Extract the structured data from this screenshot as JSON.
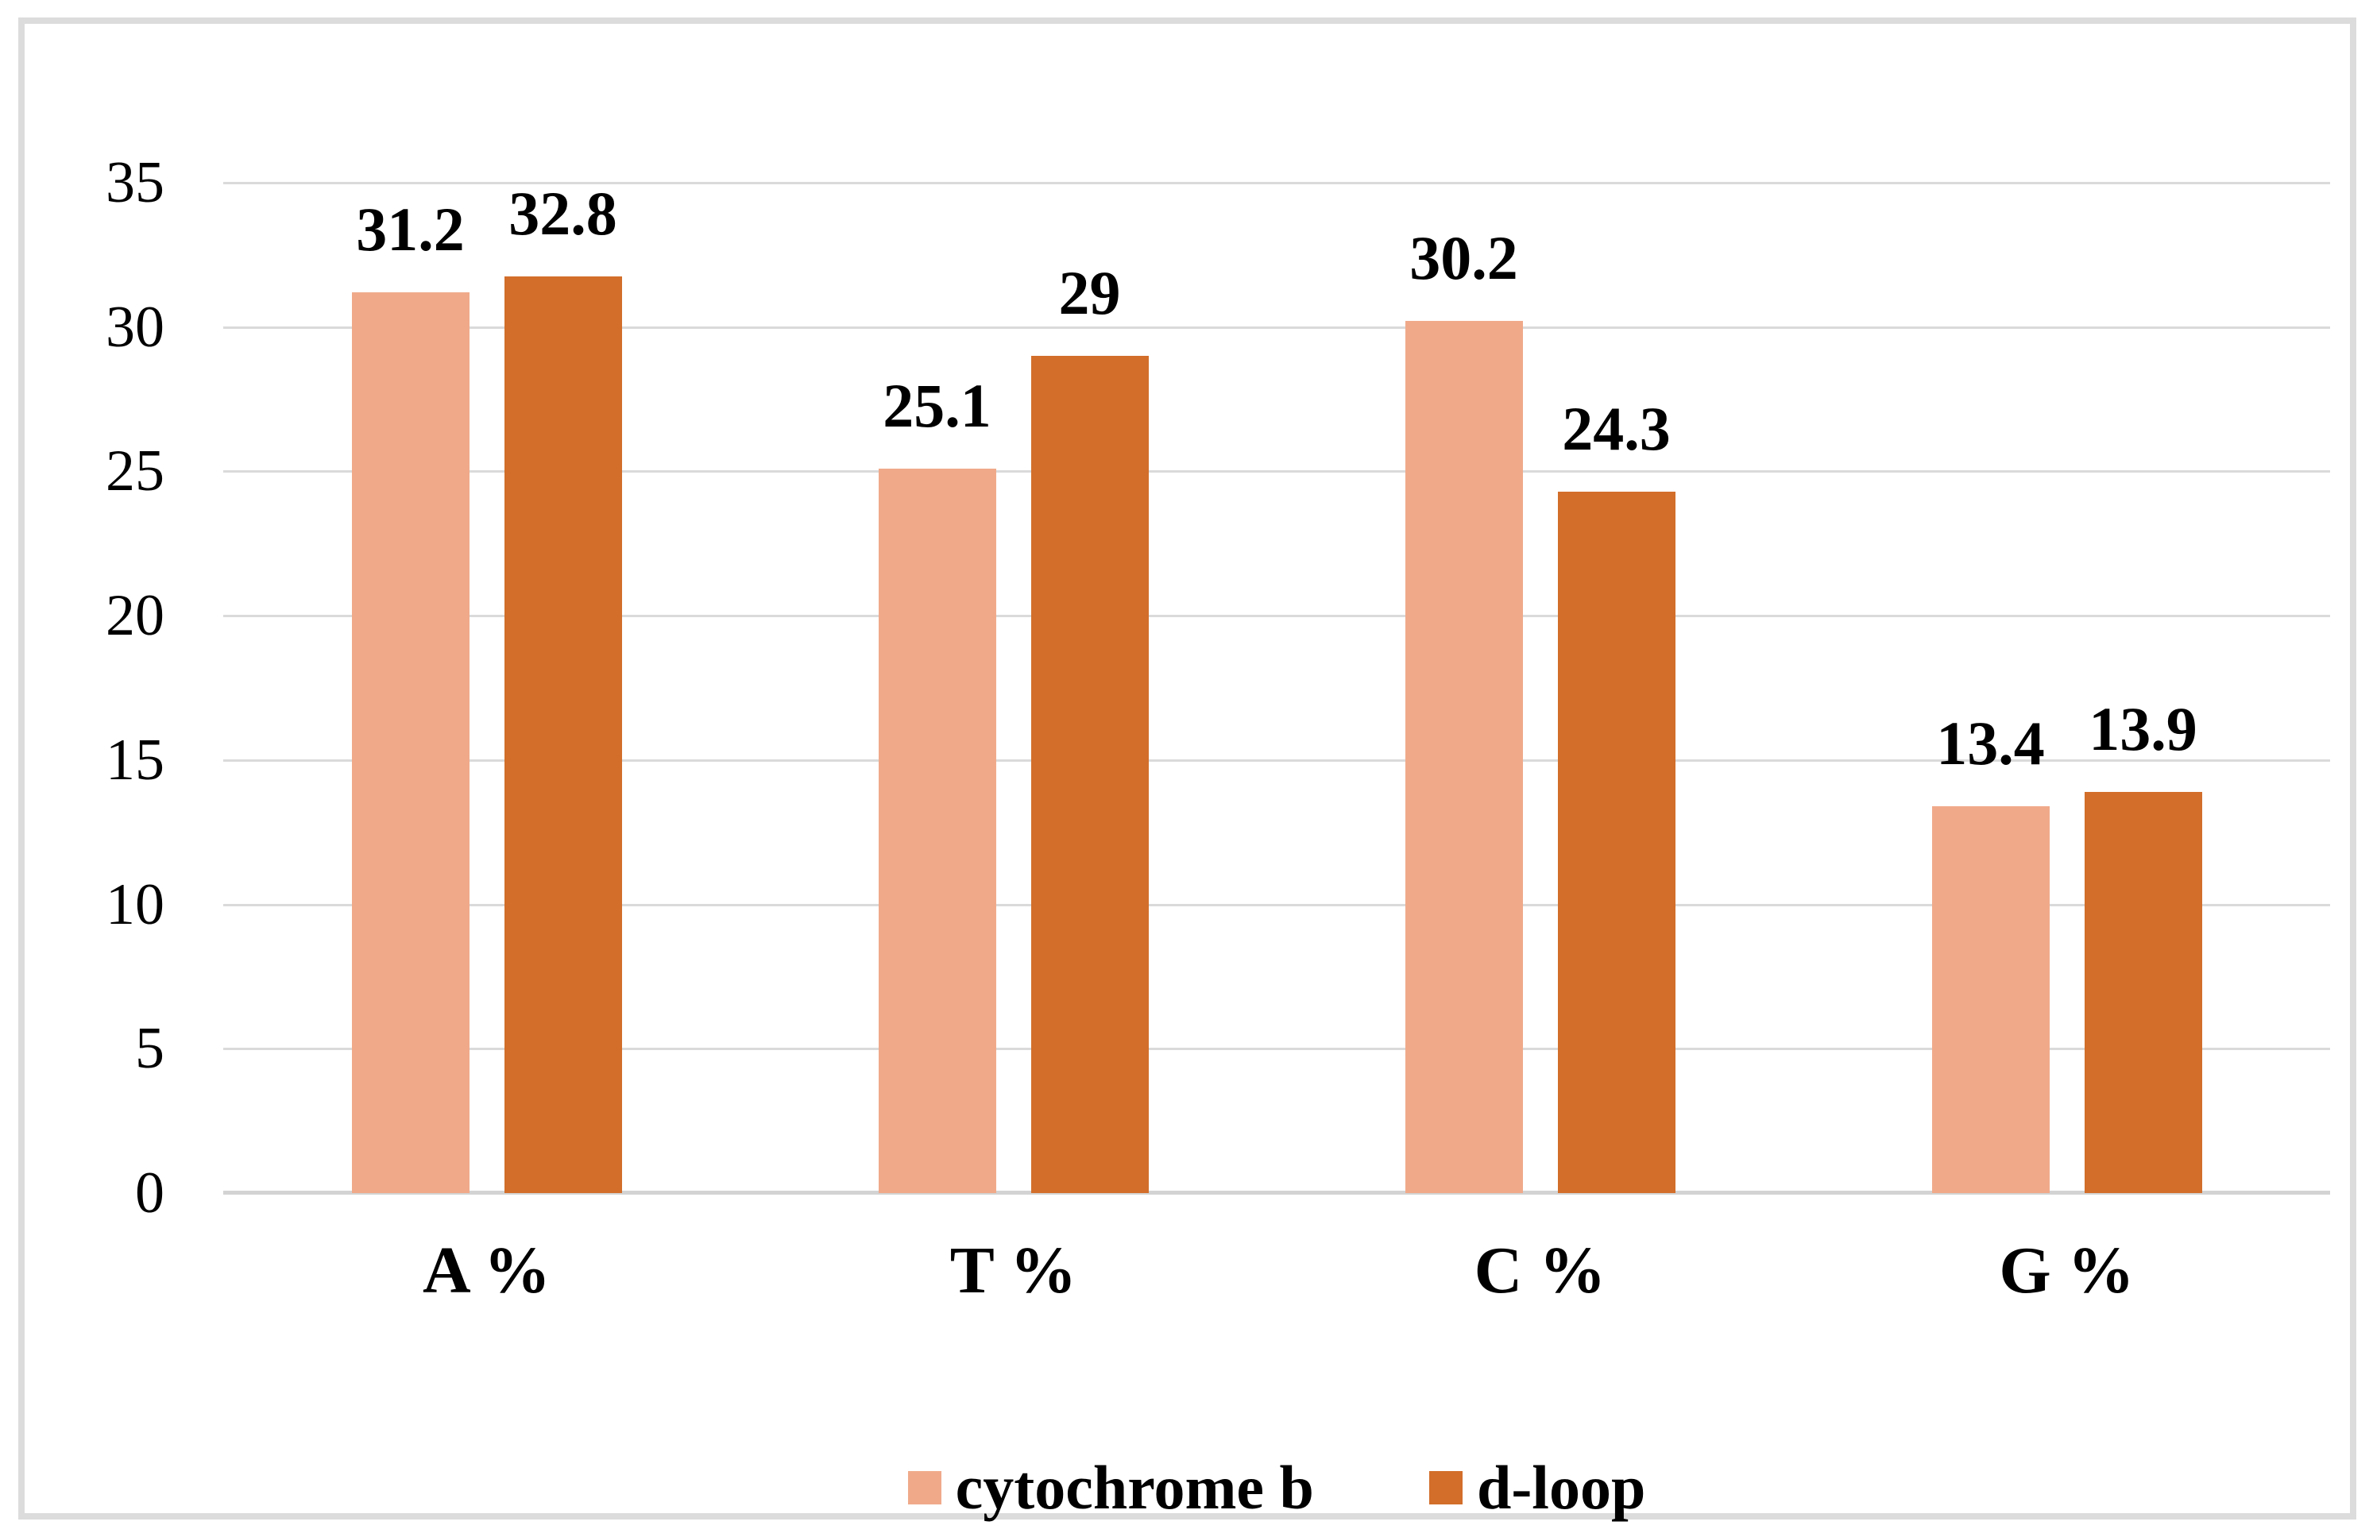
{
  "chart_data": {
    "type": "bar",
    "title": "",
    "xlabel": "",
    "ylabel": "",
    "categories": [
      "A %",
      "T %",
      "C %",
      "G %"
    ],
    "series": [
      {
        "name": "cytochrome b",
        "color": "#F0AA8A",
        "values": [
          31.2,
          25.1,
          30.2,
          13.4
        ],
        "value_labels": [
          "31.2",
          "25.1",
          "30.2",
          "13.4"
        ]
      },
      {
        "name": "d-loop",
        "color": "#D26E2A",
        "values": [
          32.8,
          29,
          24.3,
          13.9
        ],
        "value_labels": [
          "32.8",
          "29",
          "24.3",
          "13.9"
        ]
      }
    ],
    "ylim": [
      0,
      35
    ],
    "yticks": [
      0,
      5,
      10,
      15,
      20,
      25,
      30,
      35
    ],
    "grid": true,
    "legend_position": "bottom-center",
    "colors": {
      "gridline": "#DADADA",
      "frame": "#DCDCDC",
      "text": "#000000"
    }
  }
}
